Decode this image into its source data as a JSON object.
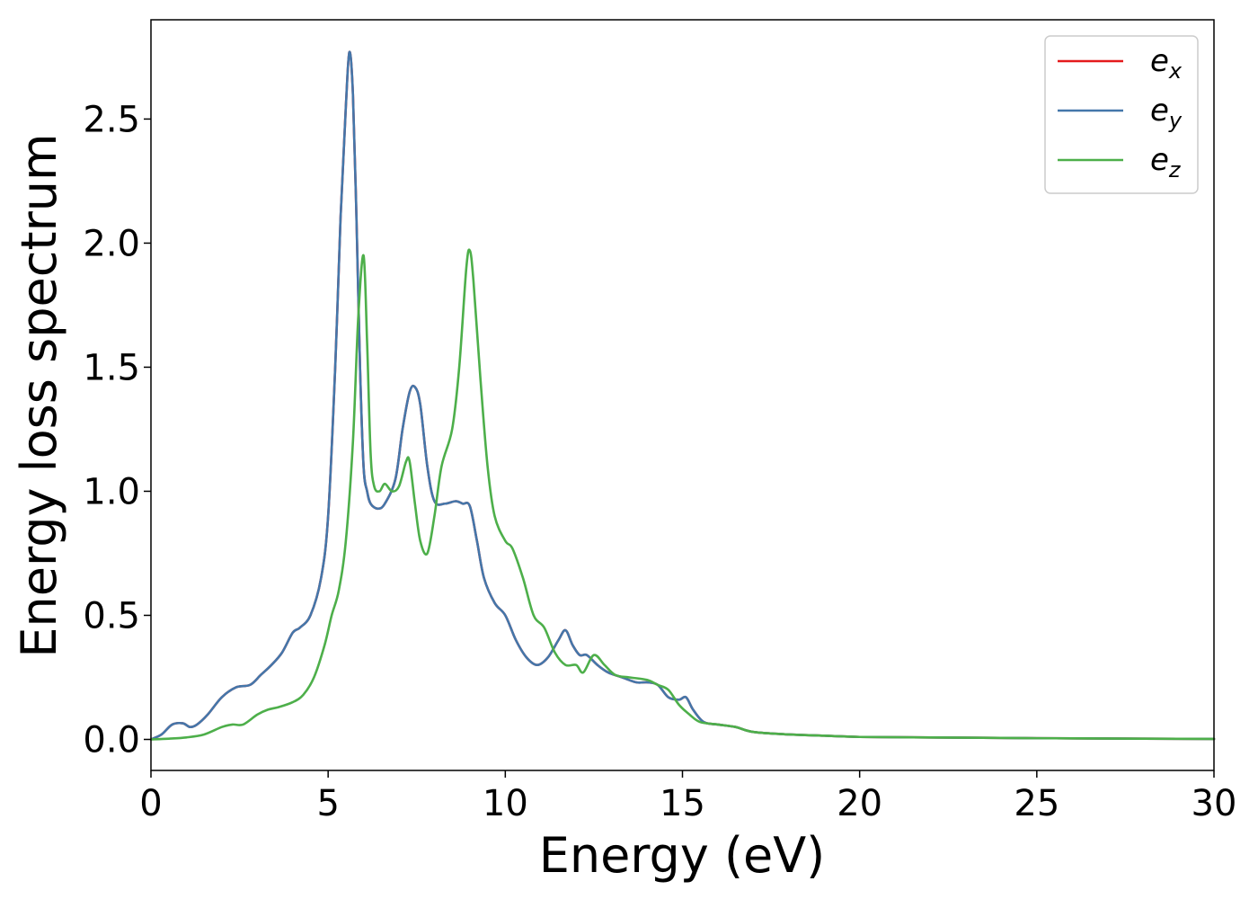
{
  "chart_data": {
    "type": "line",
    "xlabel": "Energy (eV)",
    "ylabel": "Energy loss spectrum",
    "xlim": [
      0,
      30
    ],
    "ylim": [
      -0.125,
      2.9
    ],
    "x_ticks": [
      0,
      5,
      10,
      15,
      20,
      25,
      30
    ],
    "x_tick_labels": [
      "0",
      "5",
      "10",
      "15",
      "20",
      "25",
      "30"
    ],
    "y_ticks": [
      0.0,
      0.5,
      1.0,
      1.5,
      2.0,
      2.5
    ],
    "y_tick_labels": [
      "0.0",
      "0.5",
      "1.0",
      "1.5",
      "2.0",
      "2.5"
    ],
    "grid": false,
    "legend_position": "top-right",
    "series": [
      {
        "name": "e_x",
        "legend_base": "e",
        "legend_sub": "x",
        "color": "#e41a1c",
        "x": [
          0,
          0.3,
          0.6,
          0.9,
          1.1,
          1.3,
          1.6,
          2.0,
          2.4,
          2.8,
          3.1,
          3.4,
          3.7,
          4.0,
          4.2,
          4.5,
          4.8,
          5.0,
          5.2,
          5.35,
          5.5,
          5.6,
          5.7,
          5.8,
          5.9,
          6.0,
          6.1,
          6.2,
          6.4,
          6.6,
          6.9,
          7.1,
          7.3,
          7.45,
          7.6,
          7.8,
          8.0,
          8.3,
          8.6,
          8.8,
          9.0,
          9.2,
          9.4,
          9.7,
          10.0,
          10.3,
          10.6,
          10.9,
          11.2,
          11.5,
          11.7,
          11.9,
          12.1,
          12.3,
          12.6,
          12.9,
          13.3,
          13.7,
          14.0,
          14.3,
          14.6,
          14.9,
          15.1,
          15.3,
          15.6,
          16.0,
          16.5,
          17.0,
          18.0,
          19.0,
          20.0,
          22.0,
          25.0,
          28.0,
          30.0
        ],
        "y": [
          0.0,
          0.02,
          0.06,
          0.065,
          0.05,
          0.06,
          0.1,
          0.17,
          0.21,
          0.22,
          0.26,
          0.3,
          0.35,
          0.43,
          0.45,
          0.5,
          0.65,
          0.9,
          1.5,
          2.1,
          2.55,
          2.77,
          2.6,
          2.1,
          1.5,
          1.1,
          1.0,
          0.95,
          0.93,
          0.95,
          1.05,
          1.25,
          1.4,
          1.42,
          1.35,
          1.1,
          0.96,
          0.95,
          0.96,
          0.95,
          0.94,
          0.8,
          0.65,
          0.55,
          0.5,
          0.4,
          0.33,
          0.3,
          0.33,
          0.4,
          0.44,
          0.38,
          0.34,
          0.34,
          0.3,
          0.27,
          0.25,
          0.23,
          0.23,
          0.22,
          0.17,
          0.16,
          0.17,
          0.12,
          0.07,
          0.06,
          0.05,
          0.03,
          0.02,
          0.015,
          0.01,
          0.008,
          0.005,
          0.003,
          0.002
        ]
      },
      {
        "name": "e_y",
        "legend_base": "e",
        "legend_sub": "y",
        "color": "#4477aa",
        "x": [
          0,
          0.3,
          0.6,
          0.9,
          1.1,
          1.3,
          1.6,
          2.0,
          2.4,
          2.8,
          3.1,
          3.4,
          3.7,
          4.0,
          4.2,
          4.5,
          4.8,
          5.0,
          5.2,
          5.35,
          5.5,
          5.6,
          5.7,
          5.8,
          5.9,
          6.0,
          6.1,
          6.2,
          6.4,
          6.6,
          6.9,
          7.1,
          7.3,
          7.45,
          7.6,
          7.8,
          8.0,
          8.3,
          8.6,
          8.8,
          9.0,
          9.2,
          9.4,
          9.7,
          10.0,
          10.3,
          10.6,
          10.9,
          11.2,
          11.5,
          11.7,
          11.9,
          12.1,
          12.3,
          12.6,
          12.9,
          13.3,
          13.7,
          14.0,
          14.3,
          14.6,
          14.9,
          15.1,
          15.3,
          15.6,
          16.0,
          16.5,
          17.0,
          18.0,
          19.0,
          20.0,
          22.0,
          25.0,
          28.0,
          30.0
        ],
        "y": [
          0.0,
          0.02,
          0.06,
          0.065,
          0.05,
          0.06,
          0.1,
          0.17,
          0.21,
          0.22,
          0.26,
          0.3,
          0.35,
          0.43,
          0.45,
          0.5,
          0.65,
          0.9,
          1.5,
          2.1,
          2.55,
          2.77,
          2.6,
          2.1,
          1.5,
          1.1,
          1.0,
          0.95,
          0.93,
          0.95,
          1.05,
          1.25,
          1.4,
          1.42,
          1.35,
          1.1,
          0.96,
          0.95,
          0.96,
          0.95,
          0.94,
          0.8,
          0.65,
          0.55,
          0.5,
          0.4,
          0.33,
          0.3,
          0.33,
          0.4,
          0.44,
          0.38,
          0.34,
          0.34,
          0.3,
          0.27,
          0.25,
          0.23,
          0.23,
          0.22,
          0.17,
          0.16,
          0.17,
          0.12,
          0.07,
          0.06,
          0.05,
          0.03,
          0.02,
          0.015,
          0.01,
          0.008,
          0.005,
          0.003,
          0.002
        ]
      },
      {
        "name": "e_z",
        "legend_base": "e",
        "legend_sub": "z",
        "color": "#4daf4a",
        "x": [
          0,
          0.5,
          1.0,
          1.5,
          2.0,
          2.3,
          2.6,
          3.0,
          3.3,
          3.6,
          4.0,
          4.3,
          4.6,
          4.9,
          5.1,
          5.3,
          5.5,
          5.7,
          5.85,
          6.0,
          6.1,
          6.2,
          6.3,
          6.45,
          6.6,
          6.8,
          7.0,
          7.2,
          7.3,
          7.45,
          7.6,
          7.8,
          8.0,
          8.2,
          8.5,
          8.7,
          8.9,
          9.0,
          9.1,
          9.3,
          9.5,
          9.7,
          10.0,
          10.2,
          10.5,
          10.8,
          11.1,
          11.4,
          11.7,
          12.0,
          12.2,
          12.5,
          12.8,
          13.1,
          13.5,
          14.0,
          14.3,
          14.6,
          14.9,
          15.2,
          15.5,
          16.0,
          16.5,
          17.0,
          18.0,
          19.0,
          20.0,
          22.0,
          25.0,
          28.0,
          30.0
        ],
        "y": [
          0.0,
          0.003,
          0.008,
          0.02,
          0.05,
          0.06,
          0.06,
          0.1,
          0.12,
          0.13,
          0.15,
          0.18,
          0.25,
          0.38,
          0.5,
          0.6,
          0.8,
          1.2,
          1.7,
          1.95,
          1.6,
          1.15,
          1.02,
          1.0,
          1.03,
          1.0,
          1.02,
          1.12,
          1.12,
          0.95,
          0.8,
          0.75,
          0.9,
          1.1,
          1.25,
          1.5,
          1.9,
          1.97,
          1.85,
          1.45,
          1.1,
          0.9,
          0.8,
          0.77,
          0.65,
          0.5,
          0.45,
          0.35,
          0.3,
          0.3,
          0.27,
          0.34,
          0.3,
          0.26,
          0.25,
          0.24,
          0.22,
          0.2,
          0.14,
          0.1,
          0.07,
          0.06,
          0.05,
          0.03,
          0.02,
          0.015,
          0.01,
          0.008,
          0.005,
          0.003,
          0.002
        ]
      }
    ]
  }
}
